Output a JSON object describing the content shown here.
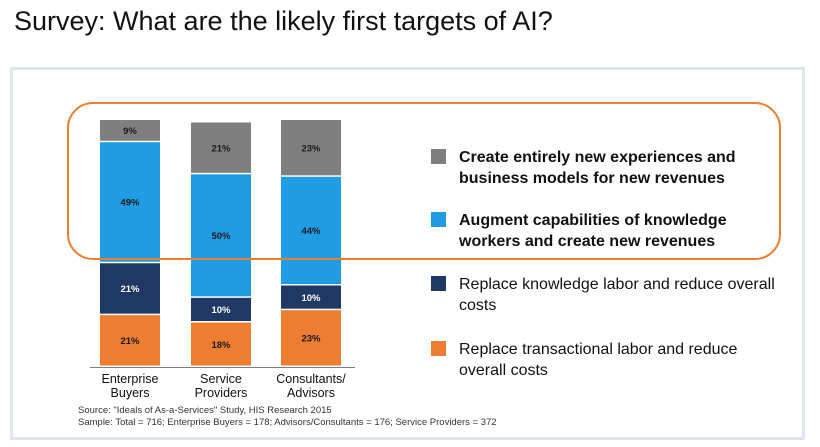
{
  "title": "Survey: What are the likely first targets of AI?",
  "chart_data": {
    "type": "bar",
    "stacked": true,
    "categories": [
      [
        "Enterprise",
        "Buyers"
      ],
      [
        "Service",
        "Providers"
      ],
      [
        "Consultants/",
        "Advisors"
      ]
    ],
    "ylim": [
      0,
      100
    ],
    "series": [
      {
        "name": "Replace transactional labor and reduce overall costs",
        "color": "#ed7d31",
        "values": [
          21,
          18,
          23
        ],
        "labels": [
          "21%",
          "18%",
          "23%"
        ]
      },
      {
        "name": "Replace knowledge labor and reduce overall costs",
        "color": "#203864",
        "values": [
          21,
          10,
          10
        ],
        "labels": [
          "21%",
          "10%",
          "10%"
        ]
      },
      {
        "name": "Augment capabilities of knowledge workers and create new revenues",
        "color": "#1f9ce4",
        "values": [
          49,
          50,
          44
        ],
        "labels": [
          "49%",
          "50%",
          "44%"
        ]
      },
      {
        "name": "Create entirely new experiences and business models for new revenues",
        "color": "#7f7f7f",
        "values": [
          9,
          21,
          23
        ],
        "labels": [
          "9%",
          "21%",
          "23%"
        ]
      }
    ]
  },
  "legend": [
    {
      "text": "Create entirely new experiences and business models for new revenues",
      "color": "#7f7f7f",
      "bold": true
    },
    {
      "text": "Augment capabilities of knowledge workers and create new revenues",
      "color": "#1f9ce4",
      "bold": true
    },
    {
      "text": "Replace knowledge labor and reduce overall costs",
      "color": "#203864",
      "bold": false
    },
    {
      "text": "Replace transactional labor and reduce overall costs",
      "color": "#ed7d31",
      "bold": false
    }
  ],
  "highlight_color": "#ed7d31",
  "source": "Source: \"Ideals of As-a-Services\" Study, HIS Research 2015",
  "sample": "Sample: Total = 716; Enterprise Buyers = 178; Advisors/Consultants = 176; Service Providers = 372"
}
